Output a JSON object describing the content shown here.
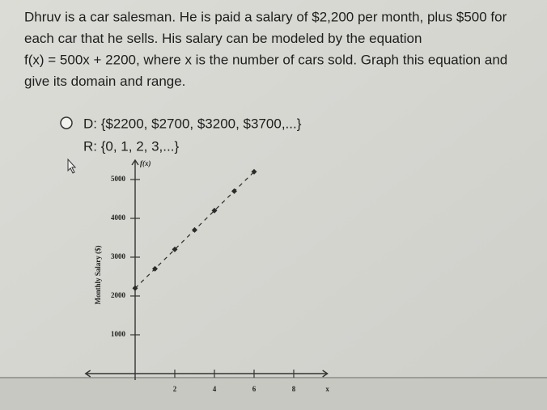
{
  "question": {
    "lines": [
      "Dhruv is a car salesman. He is paid a salary of $2,200 per month, plus $500 for",
      "each car that he sells. His salary can be modeled by the equation",
      "f(x) = 500x + 2200, where x is the number of cars sold. Graph this equation and",
      "give its domain and range."
    ]
  },
  "option": {
    "domain": "D: {$2200, $2700, $3200, $3700,...}",
    "range": "R: {0, 1, 2, 3,...}"
  },
  "chart_data": {
    "type": "scatter",
    "y_label": "Monthly Salary ($)",
    "y_title": "f(x)",
    "x_label": "x",
    "x": [
      0,
      1,
      2,
      3,
      4,
      5,
      6
    ],
    "series": [
      {
        "name": "f(x) = 500x + 2200",
        "color": "#2a2a2a",
        "values": [
          2200,
          2700,
          3200,
          3700,
          4200,
          4700,
          5200
        ]
      }
    ],
    "xlim": [
      -2.5,
      9.7
    ],
    "xticks": [
      2,
      4,
      6,
      8
    ],
    "ylim": [
      0,
      5500
    ],
    "yticks": [
      1000,
      2000,
      3000,
      4000,
      5000
    ]
  }
}
